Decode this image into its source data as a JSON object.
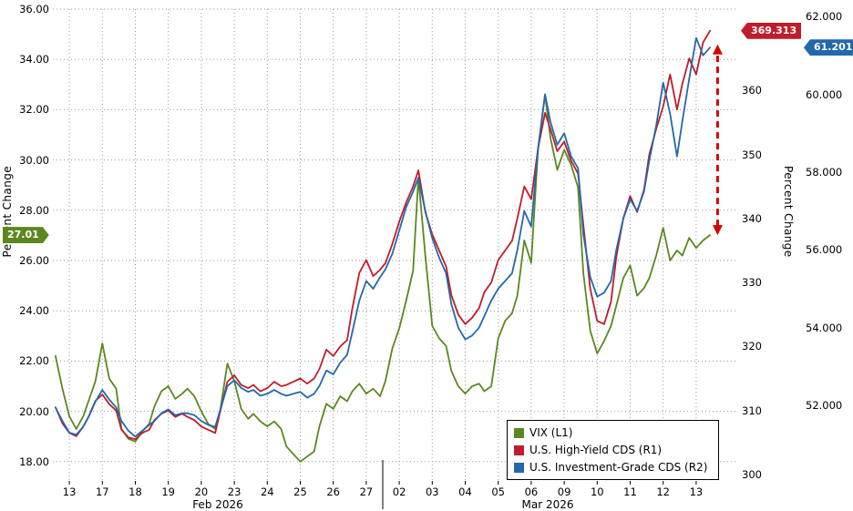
{
  "colors": {
    "vix_green": "#5c871f",
    "hy_red": "#bf1c2c",
    "ig_blue": "#2468ab",
    "arrow_red": "#d40000",
    "grid_gray": "#999999"
  },
  "chart_data": {
    "type": "line",
    "x_axis": {
      "tick_labels": [
        "13",
        "17",
        "18",
        "19",
        "20",
        "23",
        "24",
        "25",
        "26",
        "27",
        "02",
        "03",
        "04",
        "05",
        "06",
        "09",
        "10",
        "11",
        "12",
        "13"
      ],
      "months": [
        {
          "label": "Feb 2026",
          "days": 10
        },
        {
          "label": "Mar 2026",
          "days": 10
        }
      ]
    },
    "axes": {
      "left": {
        "label": "Percent Change",
        "tick_labels": [
          "18.00",
          "20.00",
          "22.00",
          "24.00",
          "26.00",
          "28.00",
          "30.00",
          "32.00",
          "34.00",
          "36.00"
        ],
        "tick_values": [
          18,
          20,
          22,
          24,
          26,
          28,
          30,
          32,
          34,
          36
        ],
        "ylim": [
          18,
          36
        ],
        "last_value": 27.01,
        "last_value_badge": "27.01"
      },
      "right1": {
        "label": "",
        "tick_labels": [
          "300",
          "310",
          "320",
          "330",
          "340",
          "350",
          "360"
        ],
        "tick_values": [
          300,
          310,
          320,
          330,
          340,
          350,
          360
        ],
        "ylim": [
          300,
          370
        ],
        "last_value": 369.313,
        "last_value_badge": "369.313"
      },
      "right2": {
        "label": "Percent Change",
        "tick_labels": [
          "52.000",
          "54.000",
          "56.000",
          "58.000",
          "60.000",
          "62.000"
        ],
        "tick_values": [
          52,
          54,
          56,
          58,
          60,
          62
        ],
        "ylim": [
          52,
          62
        ],
        "last_value": 61.201,
        "last_value_badge": "61.201"
      }
    },
    "series": [
      {
        "name": "VIX (L1)",
        "axis": "left",
        "color": "#5c871f",
        "points_per_day": 5,
        "values": [
          22.2,
          20.9,
          19.8,
          19.3,
          19.8,
          20.4,
          21.2,
          22.7,
          21.3,
          20.9,
          19.3,
          18.9,
          18.8,
          19.2,
          19.5,
          20.2,
          20.8,
          21.0,
          20.5,
          20.7,
          20.9,
          20.6,
          20.0,
          19.5,
          19.3,
          20.1,
          21.9,
          21.2,
          20.1,
          19.7,
          19.9,
          19.6,
          19.4,
          19.6,
          19.3,
          18.6,
          18.3,
          18.0,
          18.2,
          18.4,
          19.4,
          20.3,
          20.1,
          20.6,
          20.4,
          20.8,
          21.1,
          20.7,
          20.9,
          20.6,
          21.2,
          22.5,
          23.3,
          24.4,
          25.6,
          29.3,
          26.2,
          23.4,
          22.9,
          22.6,
          21.6,
          21.0,
          20.7,
          21.0,
          21.1,
          20.8,
          21.0,
          22.9,
          23.6,
          23.9,
          24.6,
          26.8,
          25.9,
          30.5,
          32.6,
          30.9,
          29.6,
          30.4,
          29.8,
          28.9,
          25.5,
          23.2,
          22.3,
          22.8,
          23.4,
          24.2,
          25.3,
          25.8,
          24.6,
          24.9,
          25.3,
          26.2,
          27.3,
          26.0,
          26.4,
          26.2,
          26.9,
          26.5,
          26.8,
          27.01
        ]
      },
      {
        "name": "U.S. High-Yield CDS (R1)",
        "axis": "right1",
        "color": "#bf1c2c",
        "points_per_day": 5,
        "values": [
          310.5,
          308,
          306.5,
          306,
          307.5,
          309,
          311.5,
          312.5,
          311,
          310,
          307,
          305.8,
          305.5,
          306.5,
          307,
          308.5,
          309.5,
          310,
          309,
          309.5,
          309,
          308.5,
          307.5,
          307,
          306.5,
          310,
          314.5,
          315.5,
          314,
          313.5,
          314,
          313,
          313.5,
          314.5,
          313.8,
          314,
          314.5,
          315,
          314.2,
          315,
          316.5,
          319.5,
          318.5,
          320,
          321,
          326,
          331.5,
          333.5,
          331,
          332,
          333,
          336,
          339.5,
          342.5,
          345,
          347.5,
          341,
          337.5,
          335,
          332.5,
          328,
          325,
          323.5,
          324.5,
          326,
          328.5,
          330,
          333.5,
          335,
          336.5,
          340,
          345,
          343,
          351,
          356.5,
          354,
          350.5,
          352,
          349,
          347,
          339,
          329,
          324,
          323.5,
          327,
          334,
          340,
          343.5,
          341,
          344.5,
          350,
          354,
          357.5,
          362.5,
          357,
          361,
          365,
          362.5,
          367.5,
          369.313
        ]
      },
      {
        "name": "U.S. Investment-Grade CDS (R2)",
        "axis": "right2",
        "color": "#2468ab",
        "points_per_day": 5,
        "values": [
          51.95,
          51.6,
          51.3,
          51.25,
          51.45,
          51.7,
          52.1,
          52.4,
          52.15,
          51.95,
          51.6,
          51.35,
          51.2,
          51.35,
          51.5,
          51.6,
          51.8,
          51.9,
          51.75,
          51.8,
          51.8,
          51.75,
          51.6,
          51.5,
          51.45,
          51.9,
          52.5,
          52.65,
          52.45,
          52.35,
          52.4,
          52.25,
          52.3,
          52.4,
          52.3,
          52.25,
          52.3,
          52.35,
          52.2,
          52.3,
          52.5,
          52.9,
          52.8,
          53.1,
          53.3,
          53.9,
          54.7,
          55.2,
          55.0,
          55.3,
          55.5,
          55.9,
          56.5,
          57.1,
          57.5,
          57.85,
          57.0,
          56.3,
          55.8,
          55.4,
          54.6,
          54.0,
          53.7,
          53.8,
          54.0,
          54.3,
          54.7,
          55.0,
          55.2,
          55.4,
          56.0,
          57.0,
          56.6,
          58.6,
          60.0,
          59.3,
          58.7,
          59.0,
          58.4,
          58.1,
          56.4,
          55.3,
          54.8,
          54.9,
          55.2,
          56.0,
          56.8,
          57.3,
          57.0,
          57.5,
          58.3,
          59.2,
          60.3,
          59.5,
          58.4,
          59.3,
          60.4,
          61.45,
          61.0,
          61.201
        ]
      }
    ],
    "annotation_arrow": {
      "style": "dashed",
      "direction": "both",
      "color": "#d40000",
      "x_day": 20.15,
      "from_axis": "left",
      "from_value": 27.01,
      "to_axis": "right1",
      "to_value": 367.2
    },
    "legend": {
      "position": "bottom-right",
      "entries": [
        "VIX (L1)",
        "U.S. High-Yield CDS (R1)",
        "U.S. Investment-Grade CDS (R2)"
      ]
    }
  }
}
